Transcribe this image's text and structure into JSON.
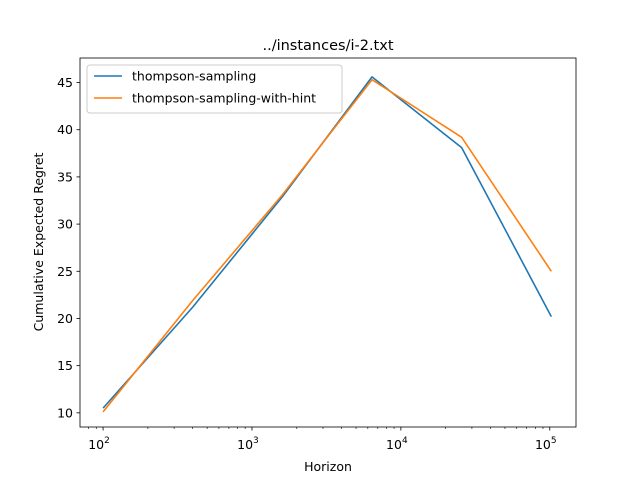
{
  "chart_data": {
    "type": "line",
    "title": "../instances/i-2.txt",
    "xlabel": "Horizon",
    "ylabel": "Cumulative Expected Regret",
    "xscale": "log",
    "xlim": [
      70,
      150000
    ],
    "ylim": [
      8.5,
      47.6
    ],
    "x_ticks": [
      {
        "value": 100,
        "base": "10",
        "exp": "2"
      },
      {
        "value": 1000,
        "base": "10",
        "exp": "3"
      },
      {
        "value": 10000,
        "base": "10",
        "exp": "4"
      },
      {
        "value": 100000,
        "base": "10",
        "exp": "5"
      }
    ],
    "y_ticks": [
      {
        "value": 10,
        "label": "10"
      },
      {
        "value": 15,
        "label": "15"
      },
      {
        "value": 20,
        "label": "20"
      },
      {
        "value": 25,
        "label": "25"
      },
      {
        "value": 30,
        "label": "30"
      },
      {
        "value": 35,
        "label": "35"
      },
      {
        "value": 40,
        "label": "40"
      },
      {
        "value": 45,
        "label": "45"
      }
    ],
    "grid": false,
    "legend_position": "top-left",
    "x": [
      100,
      400,
      1600,
      6400,
      25600,
      102400
    ],
    "series": [
      {
        "name": "thompson-sampling",
        "color": "#1f77b4",
        "values": [
          10.5,
          21.2,
          32.9,
          45.6,
          38.1,
          20.2
        ]
      },
      {
        "name": "thompson-sampling-with-hint",
        "color": "#ff7f0e",
        "values": [
          10.1,
          21.9,
          33.1,
          45.3,
          39.2,
          25.0
        ]
      }
    ]
  }
}
